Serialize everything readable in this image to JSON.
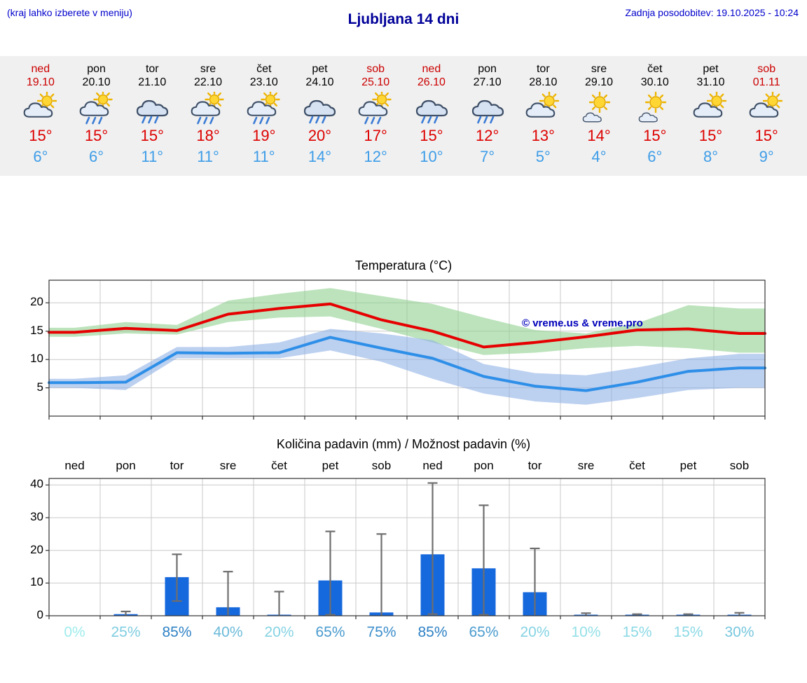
{
  "header": {
    "note": "(kraj lahko izberete v meniju)",
    "title": "Ljubljana 14 dni",
    "updated": "Zadnja posodobitev: 19.10.2025 - 10:24"
  },
  "colors": {
    "accent_blue": "#0000cc",
    "title_blue": "#000099",
    "weekend_red": "#cc0000",
    "tmax_red": "#dd0000",
    "tmin_blue": "#3e9de8",
    "pct_low": "#a0ecec",
    "pct_high": "#1b6fbe"
  },
  "days": [
    {
      "name": "ned",
      "date": "19.10",
      "weekend": true,
      "icon": "partly",
      "tmax": "15°",
      "tmin": "6°"
    },
    {
      "name": "pon",
      "date": "20.10",
      "weekend": false,
      "icon": "partly-showers",
      "tmax": "15°",
      "tmin": "6°"
    },
    {
      "name": "tor",
      "date": "21.10",
      "weekend": false,
      "icon": "rain",
      "tmax": "15°",
      "tmin": "11°"
    },
    {
      "name": "sre",
      "date": "22.10",
      "weekend": false,
      "icon": "partly-showers",
      "tmax": "18°",
      "tmin": "11°"
    },
    {
      "name": "čet",
      "date": "23.10",
      "weekend": false,
      "icon": "partly-showers",
      "tmax": "19°",
      "tmin": "11°"
    },
    {
      "name": "pet",
      "date": "24.10",
      "weekend": false,
      "icon": "rain",
      "tmax": "20°",
      "tmin": "14°"
    },
    {
      "name": "sob",
      "date": "25.10",
      "weekend": true,
      "icon": "partly-showers",
      "tmax": "17°",
      "tmin": "12°"
    },
    {
      "name": "ned",
      "date": "26.10",
      "weekend": true,
      "icon": "rain",
      "tmax": "15°",
      "tmin": "10°"
    },
    {
      "name": "pon",
      "date": "27.10",
      "weekend": false,
      "icon": "rain",
      "tmax": "12°",
      "tmin": "7°"
    },
    {
      "name": "tor",
      "date": "28.10",
      "weekend": false,
      "icon": "partly",
      "tmax": "13°",
      "tmin": "5°"
    },
    {
      "name": "sre",
      "date": "29.10",
      "weekend": false,
      "icon": "sunny-cloud",
      "tmax": "14°",
      "tmin": "4°"
    },
    {
      "name": "čet",
      "date": "30.10",
      "weekend": false,
      "icon": "sunny-cloud",
      "tmax": "15°",
      "tmin": "6°"
    },
    {
      "name": "pet",
      "date": "31.10",
      "weekend": false,
      "icon": "partly",
      "tmax": "15°",
      "tmin": "8°"
    },
    {
      "name": "sob",
      "date": "01.11",
      "weekend": true,
      "icon": "partly",
      "tmax": "15°",
      "tmin": "9°"
    }
  ],
  "chart_data": [
    {
      "type": "line",
      "title": "Temperatura (°C)",
      "categories": [
        "ned",
        "pon",
        "tor",
        "sre",
        "čet",
        "pet",
        "sob",
        "ned",
        "pon",
        "tor",
        "sre",
        "čet",
        "pet",
        "sob"
      ],
      "series": [
        {
          "name": "max-temp",
          "color": "#e60000",
          "values": [
            14.8,
            15.5,
            15.1,
            18,
            19,
            19.8,
            17,
            15,
            12.2,
            13,
            14,
            15.2,
            15.4,
            14.6
          ]
        },
        {
          "name": "min-temp",
          "color": "#2e8fe8",
          "values": [
            5.9,
            6,
            11.2,
            11.1,
            11.2,
            13.9,
            12,
            10.2,
            7,
            5.3,
            4.5,
            6,
            7.9,
            8.5
          ]
        }
      ],
      "bands": [
        {
          "name": "max-temp-range",
          "color": "#8fd08f",
          "upper": [
            15.6,
            16.6,
            16.1,
            20.4,
            21.6,
            22.6,
            21.2,
            19.8,
            17.4,
            15.2,
            14.6,
            16.4,
            19.6,
            19.0
          ],
          "lower": [
            14.0,
            14.6,
            14.4,
            16.6,
            17.4,
            17.6,
            15.4,
            13.0,
            10.8,
            11.2,
            12.0,
            12.4,
            12.0,
            11.2
          ]
        },
        {
          "name": "min-temp-range",
          "color": "#8fb0e6",
          "upper": [
            6.6,
            7.2,
            12.2,
            12.2,
            13.0,
            15.4,
            14.6,
            13.4,
            9.2,
            7.6,
            7.2,
            8.6,
            10.2,
            11.0
          ],
          "lower": [
            5.0,
            4.6,
            10.2,
            10.2,
            10.2,
            11.6,
            9.6,
            6.6,
            4.0,
            2.6,
            2.0,
            3.2,
            4.6,
            5.0
          ]
        }
      ],
      "yticks": [
        5,
        10,
        15,
        20
      ],
      "ylim": [
        0,
        24
      ],
      "grid": true,
      "watermark": "© vreme.us & vreme.pro"
    },
    {
      "type": "bar",
      "title": "Količina padavin (mm) / Možnost padavin (%)",
      "categories": [
        "ned",
        "pon",
        "tor",
        "sre",
        "čet",
        "pet",
        "sob",
        "ned",
        "pon",
        "tor",
        "sre",
        "čet",
        "pet",
        "sob"
      ],
      "values": [
        0,
        0.5,
        11.8,
        2.6,
        0.3,
        10.8,
        1.0,
        18.8,
        14.5,
        7.2,
        0.2,
        0.15,
        0.1,
        0.25
      ],
      "whisker_high": [
        0,
        1.3,
        18.8,
        13.5,
        7.4,
        25.8,
        25,
        40.6,
        33.8,
        20.6,
        0.8,
        0.5,
        0.5,
        0.9
      ],
      "whisker_low": [
        0,
        0,
        4.5,
        0.2,
        0,
        0.3,
        0,
        0.5,
        0.3,
        0.2,
        0,
        0,
        0,
        0
      ],
      "probabilities": [
        "0%",
        "25%",
        "85%",
        "40%",
        "20%",
        "65%",
        "75%",
        "85%",
        "65%",
        "20%",
        "10%",
        "15%",
        "15%",
        "30%"
      ],
      "bar_color": "#1668dd",
      "yticks": [
        0,
        10,
        20,
        30,
        40
      ],
      "ylim": [
        0,
        42
      ],
      "grid": true
    }
  ]
}
